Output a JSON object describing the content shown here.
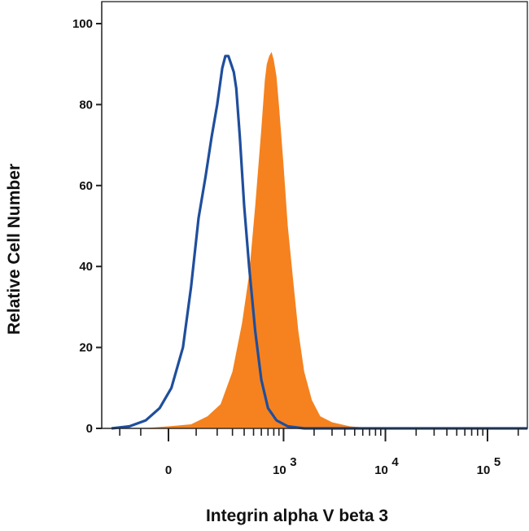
{
  "chart_data": {
    "type": "area",
    "title": "",
    "xlabel": "Integrin alpha V beta 3",
    "ylabel": "Relative Cell Number",
    "xscale": "biexponential (logicle)",
    "ylim": [
      0,
      100
    ],
    "y_ticks": [
      0,
      20,
      40,
      60,
      80,
      100
    ],
    "y_tick_labels": [
      "0",
      "20",
      "40",
      "60",
      "80",
      "100"
    ],
    "x_ticks": [
      {
        "value": 0,
        "base": "0",
        "exp": ""
      },
      {
        "value": 1000,
        "base": "10",
        "exp": "3"
      },
      {
        "value": 10000,
        "base": "10",
        "exp": "4"
      },
      {
        "value": 100000,
        "base": "10",
        "exp": "5"
      }
    ],
    "grid": false,
    "legend": "none",
    "series": [
      {
        "style": "outline",
        "color": "#1f4e9c",
        "x": [
          -250,
          -150,
          -80,
          -30,
          10,
          50,
          80,
          110,
          140,
          170,
          200,
          230,
          250,
          270,
          290,
          310,
          330,
          360,
          400,
          450,
          520,
          600,
          700,
          850,
          1100,
          1600,
          3000,
          10000,
          100000,
          262000
        ],
        "values": [
          0,
          0.5,
          2,
          5,
          10,
          20,
          35,
          52,
          62,
          72,
          80,
          89,
          92,
          92,
          90,
          88,
          84,
          72,
          55,
          40,
          24,
          12,
          5,
          2,
          0.5,
          0,
          0,
          0,
          0,
          0
        ]
      },
      {
        "style": "filled",
        "color": "#f5821f",
        "x": [
          -250,
          -100,
          0,
          80,
          150,
          220,
          300,
          380,
          450,
          520,
          600,
          650,
          680,
          720,
          760,
          800,
          850,
          900,
          1000,
          1100,
          1250,
          1400,
          1600,
          1900,
          2300,
          3000,
          4500,
          8000,
          100000,
          262000
        ],
        "values": [
          0,
          0,
          0.5,
          1,
          3,
          6,
          14,
          26,
          38,
          55,
          74,
          86,
          90,
          92,
          93,
          91,
          87,
          80,
          65,
          50,
          36,
          24,
          14,
          7,
          3,
          1.5,
          0.5,
          0,
          0,
          0
        ]
      }
    ]
  }
}
